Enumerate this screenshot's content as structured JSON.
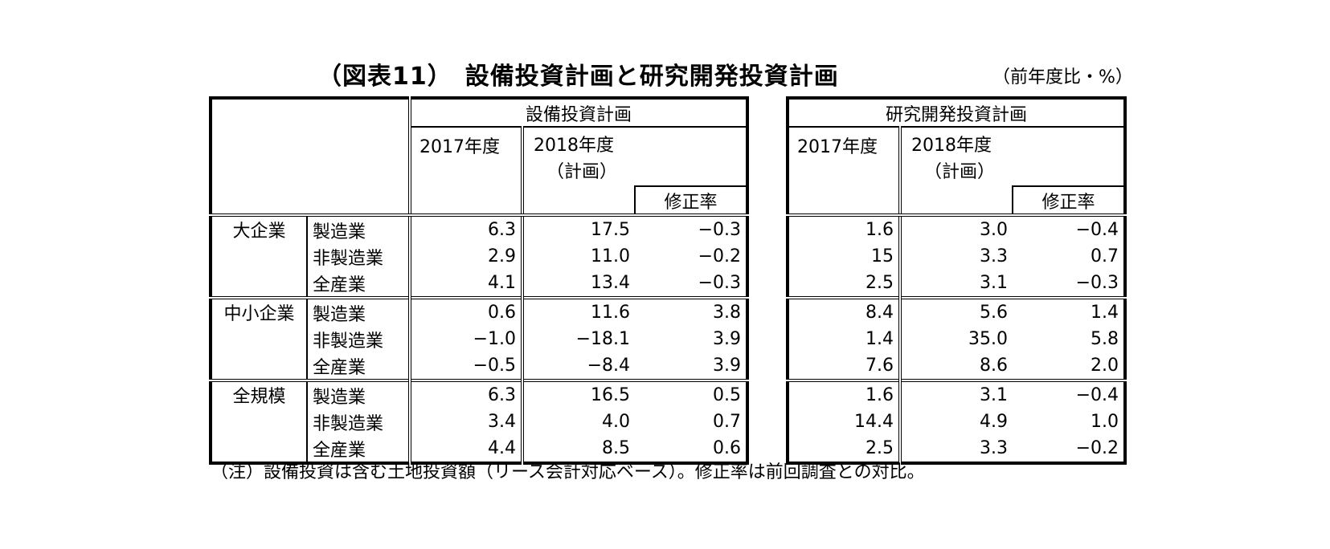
{
  "title": "（図表11）　設備投資計画と研究開発投資計画",
  "unit": "（前年度比・%）",
  "note": "（注）設備投資は含む土地投資額（リース会計対応ベース）。修正率は前回調査との対比。",
  "sections": {
    "left": "設備投資計画",
    "right": "研究開発投資計画"
  },
  "headers": {
    "y2017": "2017年度",
    "y2018": "2018年度",
    "plan": "（計画）",
    "mod": "修正率"
  },
  "groups": [
    "大企業",
    "中小企業",
    "全規模"
  ],
  "industries": [
    "製造業",
    "非製造業",
    "全産業"
  ],
  "capex": [
    [
      "6.3",
      "17.5",
      "−0.3"
    ],
    [
      "2.9",
      "11.0",
      "−0.2"
    ],
    [
      "4.1",
      "13.4",
      "−0.3"
    ],
    [
      "0.6",
      "11.6",
      "3.8"
    ],
    [
      "−1.0",
      "−18.1",
      "3.9"
    ],
    [
      "−0.5",
      "−8.4",
      "3.9"
    ],
    [
      "6.3",
      "16.5",
      "0.5"
    ],
    [
      "3.4",
      "4.0",
      "0.7"
    ],
    [
      "4.4",
      "8.5",
      "0.6"
    ]
  ],
  "rnd": [
    [
      "1.6",
      "3.0",
      "−0.4"
    ],
    [
      "15",
      "3.3",
      "0.7"
    ],
    [
      "2.5",
      "3.1",
      "−0.3"
    ],
    [
      "8.4",
      "5.6",
      "1.4"
    ],
    [
      "1.4",
      "35.0",
      "5.8"
    ],
    [
      "7.6",
      "8.6",
      "2.0"
    ],
    [
      "1.6",
      "3.1",
      "−0.4"
    ],
    [
      "14.4",
      "4.9",
      "1.0"
    ],
    [
      "2.5",
      "3.3",
      "−0.2"
    ]
  ]
}
